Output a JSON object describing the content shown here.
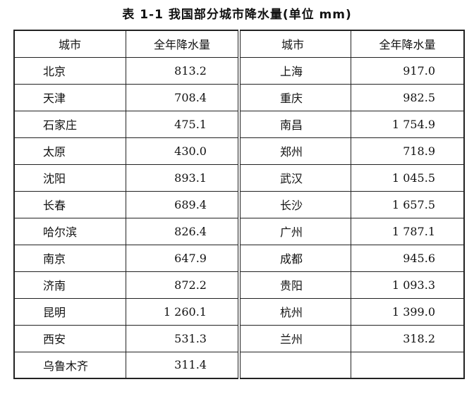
{
  "title": "表 1-1   我国部分城市降水量(单位 mm)",
  "headers": {
    "city": "城市",
    "value": "全年降水量",
    "city2": "城市",
    "value2": "全年降水量"
  },
  "left": [
    {
      "city": "北京",
      "value": "813.2"
    },
    {
      "city": "天津",
      "value": "708.4"
    },
    {
      "city": "石家庄",
      "value": "475.1"
    },
    {
      "city": "太原",
      "value": "430.0"
    },
    {
      "city": "沈阳",
      "value": "893.1"
    },
    {
      "city": "长春",
      "value": "689.4"
    },
    {
      "city": "哈尔滨",
      "value": "826.4"
    },
    {
      "city": "南京",
      "value": "647.9"
    },
    {
      "city": "济南",
      "value": "872.2"
    },
    {
      "city": "昆明",
      "value": "1 260.1"
    },
    {
      "city": "西安",
      "value": "531.3"
    },
    {
      "city": "乌鲁木齐",
      "value": "311.4"
    }
  ],
  "right": [
    {
      "city": "上海",
      "value": "917.0"
    },
    {
      "city": "重庆",
      "value": "982.5"
    },
    {
      "city": "南昌",
      "value": "1 754.9"
    },
    {
      "city": "郑州",
      "value": "718.9"
    },
    {
      "city": "武汉",
      "value": "1 045.5"
    },
    {
      "city": "长沙",
      "value": "1 657.5"
    },
    {
      "city": "广州",
      "value": "1 787.1"
    },
    {
      "city": "成都",
      "value": "945.6"
    },
    {
      "city": "贵阳",
      "value": "1 093.3"
    },
    {
      "city": "杭州",
      "value": "1 399.0"
    },
    {
      "city": "兰州",
      "value": "318.2"
    }
  ]
}
